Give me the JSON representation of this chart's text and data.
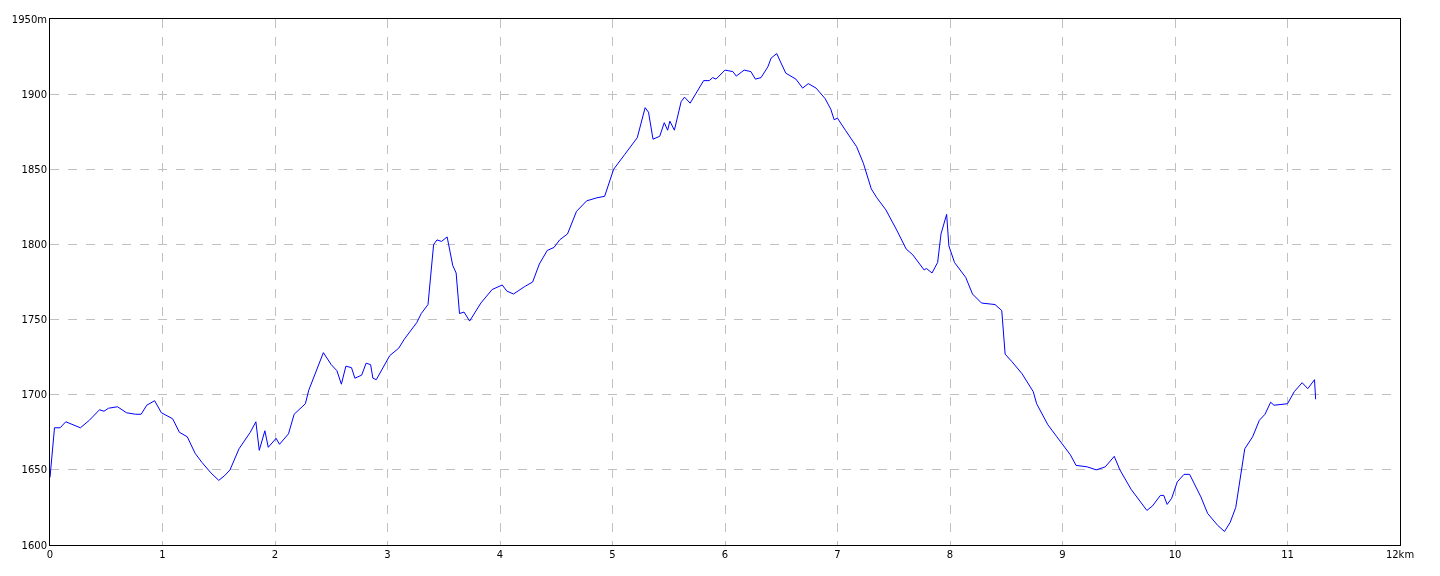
{
  "chart_data": {
    "type": "line",
    "x": [
      0,
      0.04,
      0.09,
      0.14,
      0.27,
      0.35,
      0.44,
      0.48,
      0.52,
      0.6,
      0.68,
      0.76,
      0.81,
      0.86,
      0.93,
      0.99,
      1.09,
      1.15,
      1.22,
      1.29,
      1.35,
      1.43,
      1.5,
      1.55,
      1.6,
      1.68,
      1.78,
      1.83,
      1.86,
      1.91,
      1.94,
      2.01,
      2.04,
      2.12,
      2.17,
      2.27,
      2.3,
      2.43,
      2.5,
      2.55,
      2.59,
      2.63,
      2.68,
      2.71,
      2.77,
      2.81,
      2.85,
      2.87,
      2.9,
      3.02,
      3.1,
      3.15,
      3.26,
      3.3,
      3.35,
      3.36,
      3.41,
      3.44,
      3.48,
      3.53,
      3.58,
      3.61,
      3.64,
      3.68,
      3.73,
      3.83,
      3.93,
      4.02,
      4.06,
      4.12,
      4.22,
      4.29,
      4.35,
      4.42,
      4.48,
      4.53,
      4.6,
      4.68,
      4.77,
      4.86,
      4.93,
      5.01,
      5.11,
      5.22,
      5.29,
      5.32,
      5.36,
      5.42,
      5.46,
      5.49,
      5.51,
      5.55,
      5.61,
      5.64,
      5.69,
      5.81,
      5.86,
      5.89,
      5.92,
      6.0,
      6.07,
      6.1,
      6.17,
      6.23,
      6.27,
      6.32,
      6.38,
      6.41,
      6.46,
      6.49,
      6.54,
      6.63,
      6.69,
      6.74,
      6.81,
      6.89,
      6.94,
      6.97,
      7.0,
      7.07,
      7.17,
      7.23,
      7.3,
      7.35,
      7.43,
      7.53,
      7.61,
      7.67,
      7.77,
      7.79,
      7.84,
      7.89,
      7.92,
      7.97,
      7.99,
      8.04,
      8.14,
      8.2,
      8.28,
      8.4,
      8.46,
      8.49,
      8.55,
      8.64,
      8.74,
      8.77,
      8.87,
      8.95,
      9.07,
      9.12,
      9.22,
      9.3,
      9.38,
      9.46,
      9.51,
      9.61,
      9.75,
      9.8,
      9.87,
      9.9,
      9.93,
      9.97,
      10.02,
      10.08,
      10.13,
      10.23,
      10.29,
      10.38,
      10.44,
      10.49,
      10.54,
      10.62,
      10.69,
      10.75,
      10.8,
      10.85,
      10.88,
      11.0,
      11.06,
      11.13,
      11.18,
      11.24,
      11.25
    ],
    "series": [
      {
        "color": "#0000ff",
        "values": [
          1645,
          1678,
          1678,
          1682,
          1678,
          1683,
          1690,
          1689,
          1691,
          1692,
          1688,
          1687,
          1687,
          1693,
          1696,
          1688,
          1684,
          1675,
          1672,
          1661,
          1655,
          1648,
          1643,
          1646,
          1650,
          1664,
          1675,
          1682,
          1663,
          1676,
          1665,
          1671,
          1667,
          1674,
          1687,
          1694,
          1703,
          1728,
          1720,
          1716,
          1707,
          1719,
          1718,
          1711,
          1713,
          1721,
          1720,
          1711,
          1710,
          1726,
          1731,
          1737,
          1748,
          1754,
          1759,
          1760,
          1800,
          1803,
          1802,
          1805,
          1786,
          1781,
          1754,
          1755,
          1749,
          1761,
          1770,
          1773,
          1769,
          1767,
          1772,
          1775,
          1787,
          1796,
          1798,
          1803,
          1807,
          1822,
          1829,
          1831,
          1832,
          1850,
          1860,
          1871,
          1891,
          1888,
          1870,
          1872,
          1881,
          1876,
          1882,
          1876,
          1895,
          1898,
          1894,
          1909,
          1909,
          1911,
          1910,
          1916,
          1915,
          1912,
          1916,
          1915,
          1910,
          1911,
          1918,
          1924,
          1927,
          1922,
          1914,
          1910,
          1904,
          1907,
          1904,
          1897,
          1890,
          1883,
          1884,
          1876,
          1865,
          1854,
          1837,
          1831,
          1823,
          1809,
          1797,
          1793,
          1783,
          1784,
          1781,
          1788,
          1807,
          1820,
          1799,
          1788,
          1778,
          1767,
          1761,
          1760,
          1756,
          1727,
          1722,
          1714,
          1702,
          1694,
          1680,
          1672,
          1660,
          1653,
          1652,
          1650,
          1652,
          1659,
          1650,
          1637,
          1623,
          1626,
          1633,
          1633,
          1627,
          1631,
          1642,
          1647,
          1647,
          1632,
          1621,
          1613,
          1609,
          1615,
          1625,
          1664,
          1672,
          1683,
          1687,
          1695,
          1693,
          1694,
          1702,
          1708,
          1704,
          1710,
          1697
        ]
      }
    ],
    "xlim": [
      0,
      12
    ],
    "xticks": [
      0,
      1,
      2,
      3,
      4,
      5,
      6,
      7,
      8,
      9,
      10,
      11,
      {
        "value": 12,
        "label": "12km"
      }
    ],
    "ylim": [
      1600,
      1950
    ],
    "yticks": [
      1600,
      1650,
      1700,
      1750,
      1800,
      1850,
      1900,
      {
        "value": 1950,
        "label": "1950m"
      }
    ],
    "grid": true
  }
}
